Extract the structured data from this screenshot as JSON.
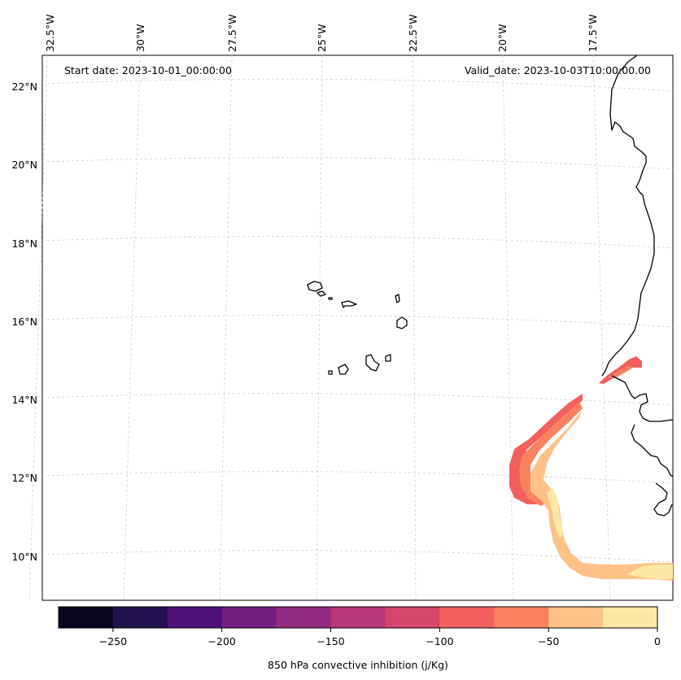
{
  "header": {
    "start_date": "Start date: 2023-10-01_00:00:00",
    "valid_date": "Valid_date: 2023-10-03T10:00:00.00"
  },
  "map": {
    "lon_labels": [
      "32.5°W",
      "30°W",
      "27.5°W",
      "25°W",
      "22.5°W",
      "20°W",
      "17.5°W"
    ],
    "lat_labels": [
      "22°N",
      "20°N",
      "18°N",
      "16°N",
      "14°N",
      "12°N",
      "10°N"
    ]
  },
  "colorbar": {
    "label": "850 hPa convective inhibition (j/Kg)",
    "ticks": [
      "−250",
      "−200",
      "−150",
      "−100",
      "−50",
      "0"
    ],
    "colors": [
      "#07061c",
      "#21114e",
      "#4f127b",
      "#721f81",
      "#922a80",
      "#b73779",
      "#d6456c",
      "#f1605d",
      "#fa815f",
      "#fec287",
      "#fce8a5"
    ]
  },
  "field": {
    "name": "850 hPa convective inhibition",
    "units": "j/Kg",
    "range": [
      -275,
      0
    ]
  }
}
